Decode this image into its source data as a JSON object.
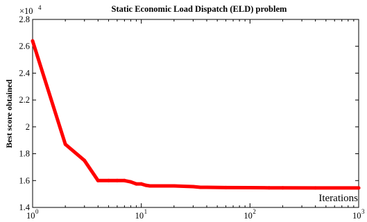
{
  "chart_data": {
    "type": "line",
    "title": "Static Economic Load Dispatch (ELD) problem",
    "xlabel": "Iterations",
    "ylabel": "Best score obtained",
    "x_scale": "log",
    "xlim": [
      1,
      1000
    ],
    "ylim": [
      14000,
      28000
    ],
    "y_multiplier": "×10",
    "y_multiplier_exp": "4",
    "y_ticks": [
      {
        "value": 14000,
        "label": "1.4"
      },
      {
        "value": 16000,
        "label": "1.6"
      },
      {
        "value": 18000,
        "label": "1.8"
      },
      {
        "value": 20000,
        "label": "2"
      },
      {
        "value": 22000,
        "label": "2.2"
      },
      {
        "value": 24000,
        "label": "2.4"
      },
      {
        "value": 26000,
        "label": "2.6"
      },
      {
        "value": 28000,
        "label": "2.8"
      }
    ],
    "x_ticks": [
      {
        "value": 1,
        "base": "10",
        "exp": "0"
      },
      {
        "value": 10,
        "base": "10",
        "exp": "1"
      },
      {
        "value": 100,
        "base": "10",
        "exp": "2"
      },
      {
        "value": 1000,
        "base": "10",
        "exp": "3"
      }
    ],
    "grid": false,
    "series": [
      {
        "color": "#ff0000",
        "x": [
          1,
          2,
          3,
          4,
          5,
          6,
          7,
          8,
          9,
          10,
          11,
          12,
          15,
          20,
          30,
          35,
          40,
          60,
          100,
          150,
          200,
          400,
          1000
        ],
        "y": [
          26400,
          18700,
          17500,
          16000,
          16000,
          16000,
          16000,
          15900,
          15750,
          15750,
          15650,
          15600,
          15600,
          15600,
          15550,
          15500,
          15500,
          15480,
          15470,
          15460,
          15455,
          15450,
          15450
        ]
      }
    ]
  }
}
